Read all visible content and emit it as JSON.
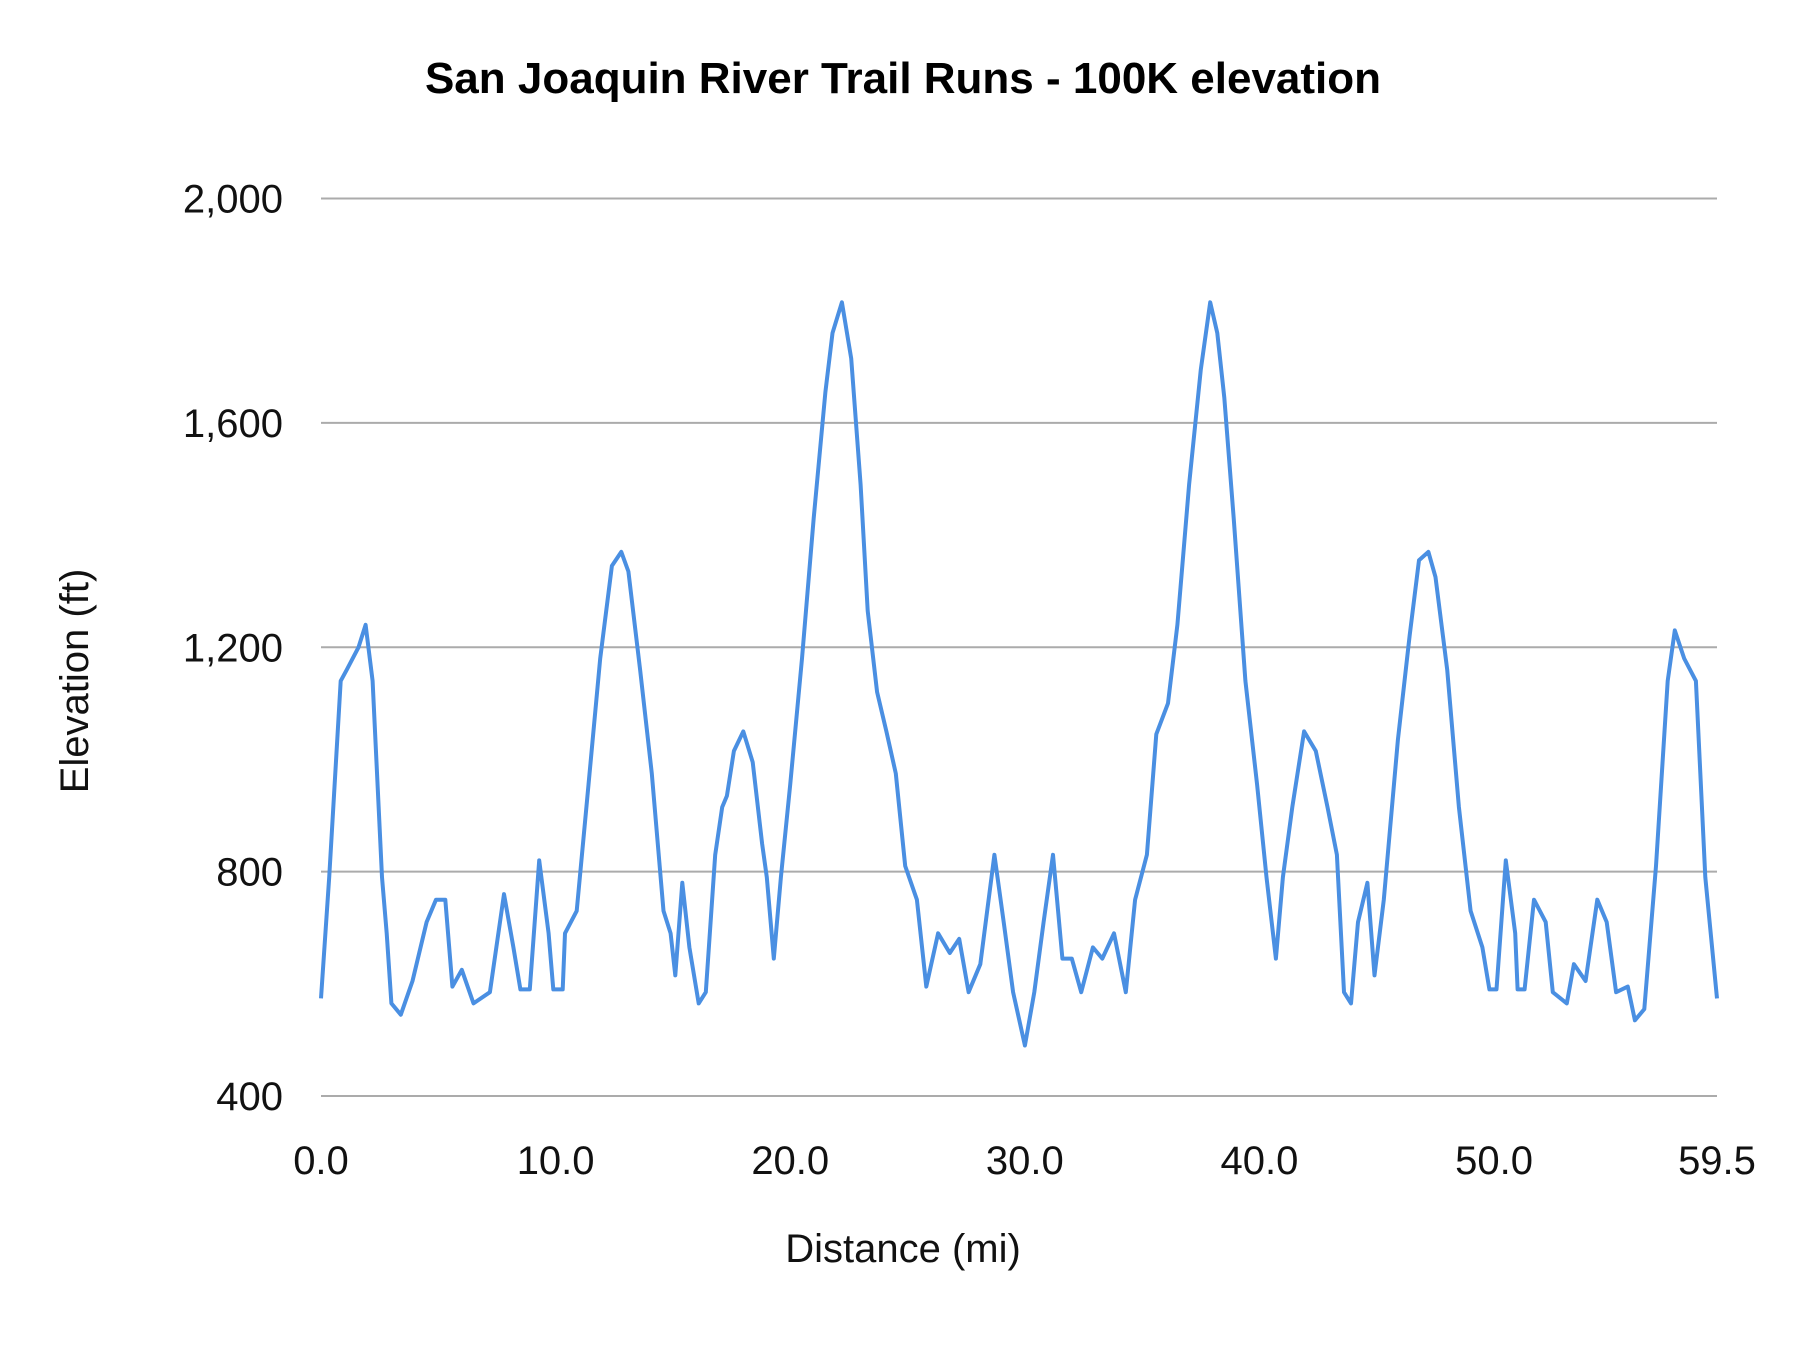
{
  "chart_data": {
    "type": "line",
    "title": "San Joaquin River Trail Runs - 100K elevation",
    "xlabel": "Distance (mi)",
    "ylabel": "Elevation (ft)",
    "xlim": [
      0,
      59.5
    ],
    "ylim": [
      400,
      2000
    ],
    "x_ticks": [
      "0.0",
      "10.0",
      "20.0",
      "30.0",
      "40.0",
      "50.0",
      "59.5"
    ],
    "x_tick_values": [
      0,
      10,
      20,
      30,
      40,
      50,
      59.5
    ],
    "y_ticks": [
      "2,000",
      "1,600",
      "1,200",
      "800",
      "400"
    ],
    "y_tick_values": [
      2000,
      1600,
      1200,
      800,
      400
    ],
    "grid": true,
    "legend": "none",
    "line_color": "#4a8fe2",
    "series": [
      {
        "x": [
          0,
          0.35,
          0.84,
          1.1,
          1.6,
          1.9,
          2.2,
          2.6,
          2.8,
          3.0,
          3.4,
          3.9,
          4.5,
          4.9,
          5.3,
          5.6,
          6.0,
          6.5,
          7.2,
          7.8,
          8.2,
          8.5,
          8.9,
          9.3,
          9.7,
          9.9,
          10.3,
          10.4,
          10.9,
          11.4,
          11.9,
          12.4,
          12.8,
          13.1,
          13.6,
          14.1,
          14.6,
          14.9,
          15.1,
          15.4,
          15.7,
          16.1,
          16.4,
          16.8,
          17.1,
          17.3,
          17.6,
          18.0,
          18.4,
          18.8,
          19.0,
          19.3,
          19.6,
          20.0,
          20.5,
          21.0,
          21.5,
          21.8,
          22.2,
          22.6,
          23.0,
          23.3,
          23.7,
          24.1,
          24.5,
          24.9,
          25.4,
          25.8,
          26.3,
          26.8,
          27.2,
          27.6,
          28.1,
          28.7,
          29.1,
          29.5,
          30.0,
          30.4,
          30.8,
          31.2,
          31.6,
          32.0,
          32.4,
          32.9,
          33.3,
          33.8,
          34.3,
          34.7,
          35.2,
          35.6,
          36.1,
          36.5,
          37.0,
          37.5,
          37.9,
          38.2,
          38.5,
          38.9,
          39.4,
          39.9,
          40.3,
          40.7,
          41.0,
          41.4,
          41.9,
          42.4,
          42.9,
          43.3,
          43.6,
          43.9,
          44.2,
          44.6,
          44.9,
          45.3,
          45.9,
          46.4,
          46.8,
          47.2,
          47.5,
          48.0,
          48.5,
          49.0,
          49.5,
          49.8,
          50.1,
          50.5,
          50.9,
          51.0,
          51.3,
          51.7,
          52.2,
          52.5,
          53.1,
          53.4,
          53.9,
          54.4,
          54.8,
          55.2,
          55.7,
          56.0,
          56.4,
          56.9,
          57.4,
          57.7,
          58.1,
          58.6,
          59.0,
          59.5
        ],
        "y": [
          574,
          790,
          1140,
          1160,
          1200,
          1240,
          1140,
          790,
          690,
          565,
          545,
          605,
          710,
          750,
          750,
          595,
          625,
          565,
          585,
          760,
          665,
          590,
          590,
          820,
          690,
          590,
          590,
          690,
          730,
          955,
          1180,
          1345,
          1370,
          1335,
          1160,
          975,
          730,
          690,
          615,
          780,
          665,
          565,
          585,
          830,
          915,
          935,
          1015,
          1050,
          995,
          850,
          790,
          645,
          790,
          955,
          1180,
          1430,
          1655,
          1760,
          1815,
          1715,
          1490,
          1265,
          1120,
          1050,
          975,
          810,
          750,
          595,
          690,
          655,
          680,
          585,
          635,
          830,
          710,
          585,
          490,
          585,
          710,
          830,
          645,
          645,
          585,
          665,
          645,
          690,
          585,
          750,
          830,
          1045,
          1100,
          1240,
          1490,
          1695,
          1815,
          1760,
          1645,
          1430,
          1140,
          955,
          790,
          645,
          790,
          915,
          1050,
          1015,
          915,
          830,
          585,
          565,
          710,
          780,
          615,
          750,
          1035,
          1220,
          1355,
          1370,
          1325,
          1160,
          915,
          730,
          665,
          590,
          590,
          820,
          690,
          590,
          590,
          750,
          710,
          585,
          565,
          635,
          605,
          750,
          710,
          585,
          595,
          535,
          555,
          810,
          1140,
          1230,
          1180,
          1140,
          790,
          574
        ]
      }
    ]
  }
}
